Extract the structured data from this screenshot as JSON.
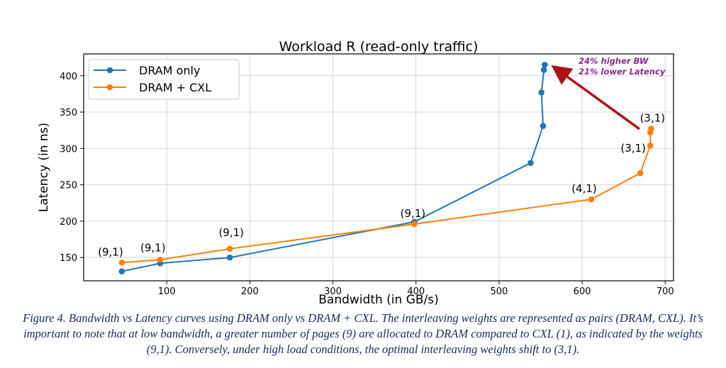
{
  "chart_data": {
    "type": "line",
    "title": "Workload R (read-only traffic)",
    "xlabel": "Bandwidth (in GB/s)",
    "ylabel": "Latency (in ns)",
    "xlim": [
      0,
      710
    ],
    "ylim": [
      118,
      430
    ],
    "xticks": [
      100,
      200,
      300,
      400,
      500,
      600,
      700
    ],
    "yticks": [
      150,
      200,
      250,
      300,
      350,
      400
    ],
    "grid": true,
    "legend_position": "top-left",
    "series": [
      {
        "name": "DRAM only",
        "color": "#1f77b4",
        "x": [
          46,
          92,
          176,
          398,
          538,
          553,
          551,
          554,
          555
        ],
        "y": [
          131,
          142,
          150,
          199,
          280,
          331,
          377,
          408,
          415
        ]
      },
      {
        "name": "DRAM + CXL",
        "color": "#ff7f0e",
        "x": [
          46,
          92,
          176,
          398,
          611,
          670,
          682,
          682,
          683
        ],
        "y": [
          143,
          147,
          162,
          196,
          230,
          266,
          304,
          322,
          327
        ]
      }
    ],
    "annotations": [
      {
        "text": "(9,1)",
        "x": 46,
        "y": 143
      },
      {
        "text": "(9,1)",
        "x": 92,
        "y": 147
      },
      {
        "text": "(9,1)",
        "x": 176,
        "y": 162
      },
      {
        "text": "(9,1)",
        "x": 398,
        "y": 196
      },
      {
        "text": "(4,1)",
        "x": 611,
        "y": 230
      },
      {
        "text": "(3,1)",
        "x": 670,
        "y": 266
      },
      {
        "text": "(3,1)",
        "x": 683,
        "y": 327
      }
    ],
    "callout": {
      "lines": [
        "24% higher BW",
        "21% lower Latency"
      ],
      "color": "#8b2a8b",
      "arrow_color": "#b01018"
    }
  },
  "caption": "Figure 4.  Bandwidth vs Latency curves using DRAM only vs DRAM + CXL. The interleaving weights are represented as pairs (DRAM, CXL). It’s important to note that at low bandwidth, a greater number of pages (9) are allocated to DRAM compared to CXL (1), as indicated by the weights (9,1). Conversely, under high load conditions, the optimal interleaving weights shift to (3,1)."
}
